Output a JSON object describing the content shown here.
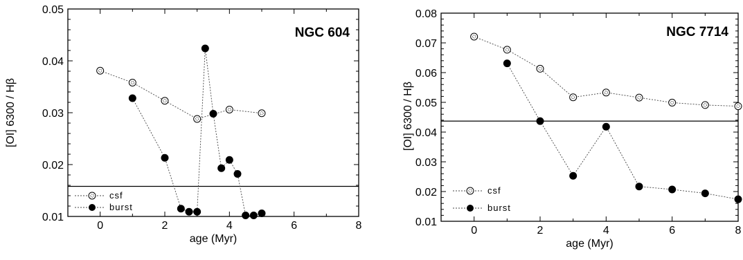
{
  "chart_data": [
    {
      "type": "scatter",
      "title": "NGC  604",
      "xlabel": "age (Myr)",
      "ylabel": "[OI] 6300 / Hβ",
      "xlim": [
        -1,
        8
      ],
      "ylim": [
        0.01,
        0.05
      ],
      "xticks": [
        "0",
        "2",
        "4",
        "6",
        "8"
      ],
      "yticks": [
        "0.01",
        "0.02",
        "0.03",
        "0.04",
        "0.05"
      ],
      "legend_position": "bottom-left",
      "grid": false,
      "reference_line": 0.0158,
      "series": [
        {
          "name": "csf",
          "marker": "open-circle",
          "x": [
            0,
            1,
            2,
            3,
            4,
            5
          ],
          "y": [
            0.0381,
            0.0358,
            0.0323,
            0.0288,
            0.0306,
            0.0299
          ]
        },
        {
          "name": "burst",
          "marker": "filled-circle",
          "x": [
            1,
            2,
            2.5,
            2.75,
            3,
            3.25,
            3.5,
            3.75,
            4,
            4.25,
            4.5,
            4.75,
            5
          ],
          "y": [
            0.0328,
            0.0213,
            0.0115,
            0.0109,
            0.0109,
            0.0424,
            0.0298,
            0.0193,
            0.0209,
            0.0182,
            0.0102,
            0.0102,
            0.0106
          ]
        }
      ]
    },
    {
      "type": "scatter",
      "title": "NGC  7714",
      "xlabel": "age (Myr)",
      "ylabel": "[OI] 6300 / Hβ",
      "xlim": [
        -1,
        8
      ],
      "ylim": [
        0.01,
        0.08
      ],
      "xticks": [
        "0",
        "2",
        "4",
        "6",
        "8"
      ],
      "yticks": [
        "0.01",
        "0.02",
        "0.03",
        "0.04",
        "0.05",
        "0.06",
        "0.07",
        "0.08"
      ],
      "legend_position": "bottom-left",
      "grid": false,
      "reference_line": 0.0437,
      "series": [
        {
          "name": "csf",
          "marker": "open-circle",
          "x": [
            0,
            1,
            2,
            3,
            4,
            5,
            6,
            7,
            8
          ],
          "y": [
            0.0721,
            0.0677,
            0.0613,
            0.0517,
            0.0533,
            0.0516,
            0.0499,
            0.0491,
            0.0487
          ]
        },
        {
          "name": "burst",
          "marker": "filled-circle",
          "x": [
            1,
            2,
            3,
            4,
            5,
            6,
            7,
            8
          ],
          "y": [
            0.0631,
            0.0437,
            0.0253,
            0.0418,
            0.0217,
            0.0207,
            0.0194,
            0.0174
          ]
        }
      ]
    }
  ]
}
